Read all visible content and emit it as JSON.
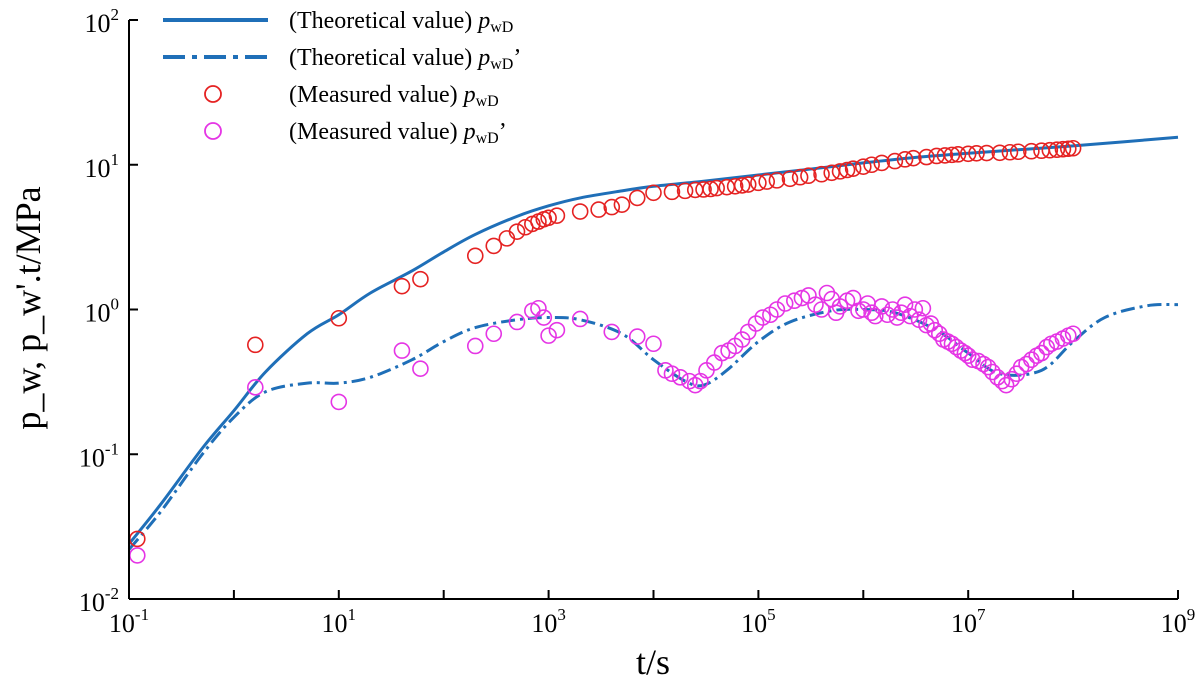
{
  "chart_data": {
    "type": "scatter",
    "title": "",
    "xlabel": "t/s",
    "ylabel": "p_w, p_w'.t/MPa",
    "xscale": "log",
    "yscale": "log",
    "xlim": [
      0.1,
      1000000000
    ],
    "ylim": [
      0.01,
      100
    ],
    "grid": false,
    "legend_position": "top-left",
    "x_ticks": [
      {
        "base": "10",
        "exp": "-1",
        "value": 0.1
      },
      {
        "base": "10",
        "exp": "1",
        "value": 10
      },
      {
        "base": "10",
        "exp": "3",
        "value": 1000
      },
      {
        "base": "10",
        "exp": "5",
        "value": 100000
      },
      {
        "base": "10",
        "exp": "7",
        "value": 10000000
      },
      {
        "base": "10",
        "exp": "9",
        "value": 1000000000
      }
    ],
    "y_ticks": [
      {
        "base": "10",
        "exp": "-2",
        "value": 0.01
      },
      {
        "base": "10",
        "exp": "-1",
        "value": 0.1
      },
      {
        "base": "10",
        "exp": "0",
        "value": 1
      },
      {
        "base": "10",
        "exp": "1",
        "value": 10
      },
      {
        "base": "10",
        "exp": "2",
        "value": 100
      }
    ],
    "series": [
      {
        "name": "(Theoretical value) pwD",
        "label_text": "(Theoretical value) ",
        "label_sym": "p",
        "label_sub": "wD",
        "label_suffix": "",
        "kind": "line",
        "style": "solid",
        "color": "#1f6fb8",
        "x": [
          0.1,
          0.2,
          0.5,
          1,
          2,
          5,
          10,
          20,
          50,
          100,
          200,
          500,
          1000,
          2000,
          5000,
          10000,
          30000,
          100000,
          300000,
          1000000,
          3000000,
          10000000,
          30000000,
          100000000,
          300000000,
          1000000000
        ],
        "y": [
          0.024,
          0.045,
          0.11,
          0.2,
          0.37,
          0.68,
          0.92,
          1.3,
          1.85,
          2.5,
          3.3,
          4.4,
          5.2,
          5.9,
          6.6,
          7.1,
          7.7,
          8.5,
          9.3,
          10.3,
          11.2,
          12.0,
          12.7,
          13.5,
          14.4,
          15.5
        ]
      },
      {
        "name": "(Theoretical value) pwD'",
        "label_text": "(Theoretical value) ",
        "label_sym": "p",
        "label_sub": "wD",
        "label_suffix": "’",
        "kind": "line",
        "style": "dashdot",
        "color": "#1f6fb8",
        "x": [
          0.1,
          0.2,
          0.5,
          1,
          2,
          5,
          10,
          20,
          50,
          100,
          200,
          500,
          1000,
          2000,
          5000,
          10000,
          20000,
          30000,
          50000,
          100000,
          200000,
          500000,
          1000000,
          2000000,
          5000000,
          10000000,
          20000000,
          50000000,
          100000000,
          200000000,
          500000000,
          1000000000
        ],
        "y": [
          0.022,
          0.04,
          0.1,
          0.18,
          0.27,
          0.31,
          0.31,
          0.34,
          0.45,
          0.6,
          0.75,
          0.85,
          0.88,
          0.85,
          0.68,
          0.45,
          0.32,
          0.3,
          0.38,
          0.6,
          0.82,
          0.98,
          1.0,
          0.95,
          0.72,
          0.5,
          0.36,
          0.38,
          0.6,
          0.88,
          1.06,
          1.08
        ]
      },
      {
        "name": "(Measured value) pwD",
        "label_text": "(Measured value) ",
        "label_sym": "p",
        "label_sub": "wD",
        "label_suffix": "",
        "kind": "scatter",
        "color": "#e52222",
        "x": [
          0.12,
          1.6,
          10,
          40,
          60,
          200,
          300,
          400,
          500,
          600,
          700,
          800,
          900,
          1000,
          1200,
          2000,
          3000,
          4000,
          5000,
          7000,
          10000,
          15000,
          20000,
          25000,
          30000,
          35000,
          40000,
          50000,
          60000,
          70000,
          80000,
          100000,
          120000,
          150000,
          200000,
          250000,
          300000,
          400000,
          500000,
          600000,
          700000,
          800000,
          1000000,
          1200000,
          1500000,
          2000000,
          2500000,
          3000000,
          4000000,
          5000000,
          6000000,
          7000000,
          8000000,
          10000000,
          12000000,
          15000000,
          20000000,
          25000000,
          30000000,
          40000000,
          50000000,
          60000000,
          70000000,
          80000000,
          90000000,
          100000000
        ],
        "y": [
          0.026,
          0.57,
          0.87,
          1.45,
          1.62,
          2.35,
          2.75,
          3.1,
          3.45,
          3.7,
          3.9,
          4.05,
          4.2,
          4.3,
          4.45,
          4.75,
          4.9,
          5.1,
          5.3,
          5.9,
          6.4,
          6.5,
          6.6,
          6.7,
          6.75,
          6.8,
          6.9,
          7.0,
          7.1,
          7.2,
          7.3,
          7.5,
          7.65,
          7.8,
          8.0,
          8.2,
          8.4,
          8.6,
          8.8,
          9.0,
          9.2,
          9.4,
          9.7,
          10.0,
          10.3,
          10.6,
          10.9,
          11.1,
          11.3,
          11.5,
          11.6,
          11.7,
          11.8,
          11.9,
          12.0,
          12.05,
          12.1,
          12.2,
          12.3,
          12.4,
          12.5,
          12.6,
          12.7,
          12.8,
          12.9,
          13.0
        ]
      },
      {
        "name": "(Measured value) pwD'",
        "label_text": "(Measured value) ",
        "label_sym": "p",
        "label_sub": "wD",
        "label_suffix": "’",
        "kind": "scatter",
        "color": "#e535e5",
        "x": [
          0.12,
          1.6,
          10,
          40,
          60,
          200,
          300,
          500,
          700,
          800,
          900,
          1000,
          1200,
          2000,
          4000,
          7000,
          10000,
          13000,
          15000,
          18000,
          22000,
          25000,
          28000,
          32000,
          38000,
          45000,
          52000,
          60000,
          70000,
          80000,
          95000,
          110000,
          130000,
          150000,
          180000,
          220000,
          260000,
          300000,
          350000,
          400000,
          450000,
          500000,
          550000,
          600000,
          700000,
          800000,
          900000,
          1000000,
          1100000,
          1200000,
          1300000,
          1500000,
          1700000,
          1900000,
          2100000,
          2300000,
          2500000,
          2800000,
          3100000,
          3400000,
          3700000,
          4000000,
          4400000,
          4800000,
          5300000,
          5800000,
          6400000,
          7000000,
          7700000,
          8500000,
          9300000,
          10000000,
          11000000,
          12500000,
          14000000,
          15500000,
          17000000,
          19000000,
          21000000,
          23000000,
          26000000,
          29000000,
          32000000,
          36000000,
          40000000,
          45000000,
          50000000,
          56000000,
          62000000,
          70000000,
          80000000,
          90000000,
          100000000
        ],
        "y": [
          0.02,
          0.29,
          0.23,
          0.52,
          0.39,
          0.56,
          0.68,
          0.82,
          0.98,
          1.02,
          0.88,
          0.66,
          0.72,
          0.86,
          0.7,
          0.65,
          0.58,
          0.38,
          0.36,
          0.34,
          0.32,
          0.3,
          0.32,
          0.38,
          0.43,
          0.5,
          0.52,
          0.56,
          0.62,
          0.7,
          0.8,
          0.88,
          0.92,
          1.0,
          1.1,
          1.15,
          1.2,
          1.25,
          1.08,
          1.0,
          1.3,
          1.18,
          0.95,
          1.05,
          1.15,
          1.2,
          0.98,
          1.0,
          1.1,
          0.95,
          0.9,
          1.05,
          0.92,
          1.0,
          0.88,
          0.95,
          1.08,
          0.9,
          1.0,
          0.85,
          1.02,
          0.78,
          0.8,
          0.72,
          0.68,
          0.62,
          0.6,
          0.58,
          0.55,
          0.52,
          0.5,
          0.48,
          0.45,
          0.44,
          0.42,
          0.4,
          0.37,
          0.34,
          0.32,
          0.3,
          0.33,
          0.36,
          0.4,
          0.42,
          0.45,
          0.48,
          0.5,
          0.55,
          0.58,
          0.6,
          0.63,
          0.66,
          0.68
        ]
      }
    ]
  }
}
